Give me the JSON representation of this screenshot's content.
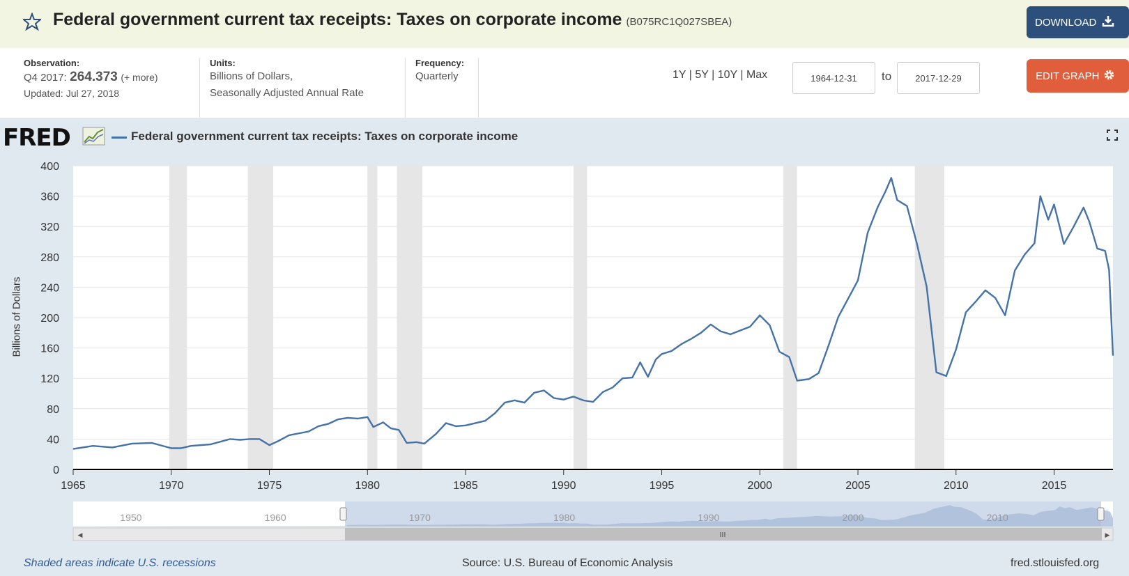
{
  "header": {
    "title": "Federal government current tax receipts: Taxes on corporate income",
    "series_id": "(B075RC1Q027SBEA)",
    "download_label": "DOWNLOAD"
  },
  "meta": {
    "observation_label": "Observation:",
    "observation_period": "Q4 2017:",
    "observation_value": "264.373",
    "observation_more": "(+ more)",
    "updated": "Updated: Jul 27, 2018",
    "units_label": "Units:",
    "units_line1": "Billions of Dollars,",
    "units_line2": "Seasonally Adjusted Annual Rate",
    "frequency_label": "Frequency:",
    "frequency_value": "Quarterly",
    "range_1y": "1Y",
    "range_5y": "5Y",
    "range_10y": "10Y",
    "range_max": "Max",
    "range_sep": "|",
    "date_start": "1964-12-31",
    "to_label": "to",
    "date_end": "2017-12-29",
    "edit_label": "EDIT GRAPH"
  },
  "logo": {
    "text": "FRED"
  },
  "colors": {
    "series": "#4572a7",
    "recession": "#e6e6e6",
    "download_btn": "#2d4f7b",
    "edit_btn": "#e05e3b",
    "nav_window": "#a8bcd9"
  },
  "icons": {
    "star": "star-icon",
    "download": "download-icon",
    "gear": "gear-icon",
    "fullscreen": "fullscreen-icon",
    "fred_chart": "fred-chart-icon"
  },
  "chart_data": {
    "type": "line",
    "title": "",
    "xlabel": "",
    "ylabel": "Billions of Dollars",
    "legend": "Federal government current tax receipts: Taxes on corporate income",
    "legend_position": "top-left",
    "grid": true,
    "ylim": [
      0,
      400
    ],
    "xlim": [
      1965,
      2018
    ],
    "yticks": [
      0,
      40,
      80,
      120,
      160,
      200,
      240,
      280,
      320,
      360,
      400
    ],
    "xticks": [
      1965,
      1970,
      1975,
      1980,
      1985,
      1990,
      1995,
      2000,
      2005,
      2010,
      2015
    ],
    "recessions": [
      [
        1969.9,
        1970.8
      ],
      [
        1973.9,
        1975.2
      ],
      [
        1980.0,
        1980.5
      ],
      [
        1981.5,
        1982.8
      ],
      [
        1990.5,
        1991.2
      ],
      [
        2001.2,
        2001.9
      ],
      [
        2007.9,
        2009.4
      ]
    ],
    "series": [
      {
        "name": "Federal government current tax receipts: Taxes on corporate income",
        "x": [
          1965.0,
          1966.0,
          1967.0,
          1968.0,
          1969.0,
          1970.0,
          1970.5,
          1971.0,
          1972.0,
          1973.0,
          1973.5,
          1974.0,
          1974.5,
          1975.0,
          1975.5,
          1976.0,
          1977.0,
          1977.5,
          1978.0,
          1978.5,
          1979.0,
          1979.5,
          1980.0,
          1980.3,
          1980.8,
          1981.2,
          1981.6,
          1982.0,
          1982.5,
          1982.9,
          1983.5,
          1984.0,
          1984.5,
          1985.0,
          1986.0,
          1986.5,
          1987.0,
          1987.5,
          1988.0,
          1988.5,
          1989.0,
          1989.5,
          1990.0,
          1990.5,
          1991.0,
          1991.5,
          1992.0,
          1992.5,
          1993.0,
          1993.5,
          1993.9,
          1994.3,
          1994.7,
          1995.0,
          1995.5,
          1996.0,
          1996.5,
          1997.0,
          1997.5,
          1998.0,
          1998.5,
          1999.0,
          1999.5,
          2000.0,
          2000.5,
          2001.0,
          2001.5,
          2001.9,
          2002.5,
          2003.0,
          2003.5,
          2004.0,
          2004.5,
          2005.0,
          2005.5,
          2006.0,
          2006.4,
          2006.7,
          2007.0,
          2007.5,
          2008.0,
          2008.5,
          2009.0,
          2009.5,
          2010.0,
          2010.5,
          2011.0,
          2011.5,
          2012.0,
          2012.5,
          2013.0,
          2013.5,
          2014.0,
          2014.3,
          2014.7,
          2015.0,
          2015.5,
          2016.0,
          2016.5,
          2016.8,
          2017.2,
          2017.6,
          2017.8,
          2018.0
        ],
        "values": [
          27,
          31,
          29,
          34,
          35,
          28,
          28,
          31,
          33,
          40,
          39,
          40,
          40,
          32,
          38,
          45,
          50,
          57,
          60,
          66,
          68,
          67,
          69,
          56,
          62,
          54,
          52,
          35,
          36,
          34,
          47,
          61,
          57,
          58,
          64,
          74,
          88,
          91,
          88,
          101,
          104,
          94,
          92,
          96,
          91,
          89,
          102,
          108,
          120,
          121,
          141,
          122,
          145,
          152,
          156,
          165,
          172,
          180,
          191,
          182,
          178,
          183,
          188,
          203,
          190,
          155,
          148,
          117,
          119,
          127,
          163,
          201,
          225,
          249,
          312,
          345,
          366,
          384,
          355,
          347,
          298,
          241,
          128,
          123,
          158,
          207,
          221,
          236,
          226,
          203,
          262,
          283,
          298,
          360,
          329,
          349,
          297,
          320,
          345,
          326,
          291,
          288,
          263,
          150
        ]
      }
    ]
  },
  "navigator": {
    "labels": [
      "1950",
      "1960",
      "1970",
      "1980",
      "1990",
      "2000",
      "2010"
    ]
  },
  "footer": {
    "recession_note": "Shaded areas indicate U.S. recessions",
    "source": "Source: U.S. Bureau of Economic Analysis",
    "site": "fred.stlouisfed.org"
  }
}
